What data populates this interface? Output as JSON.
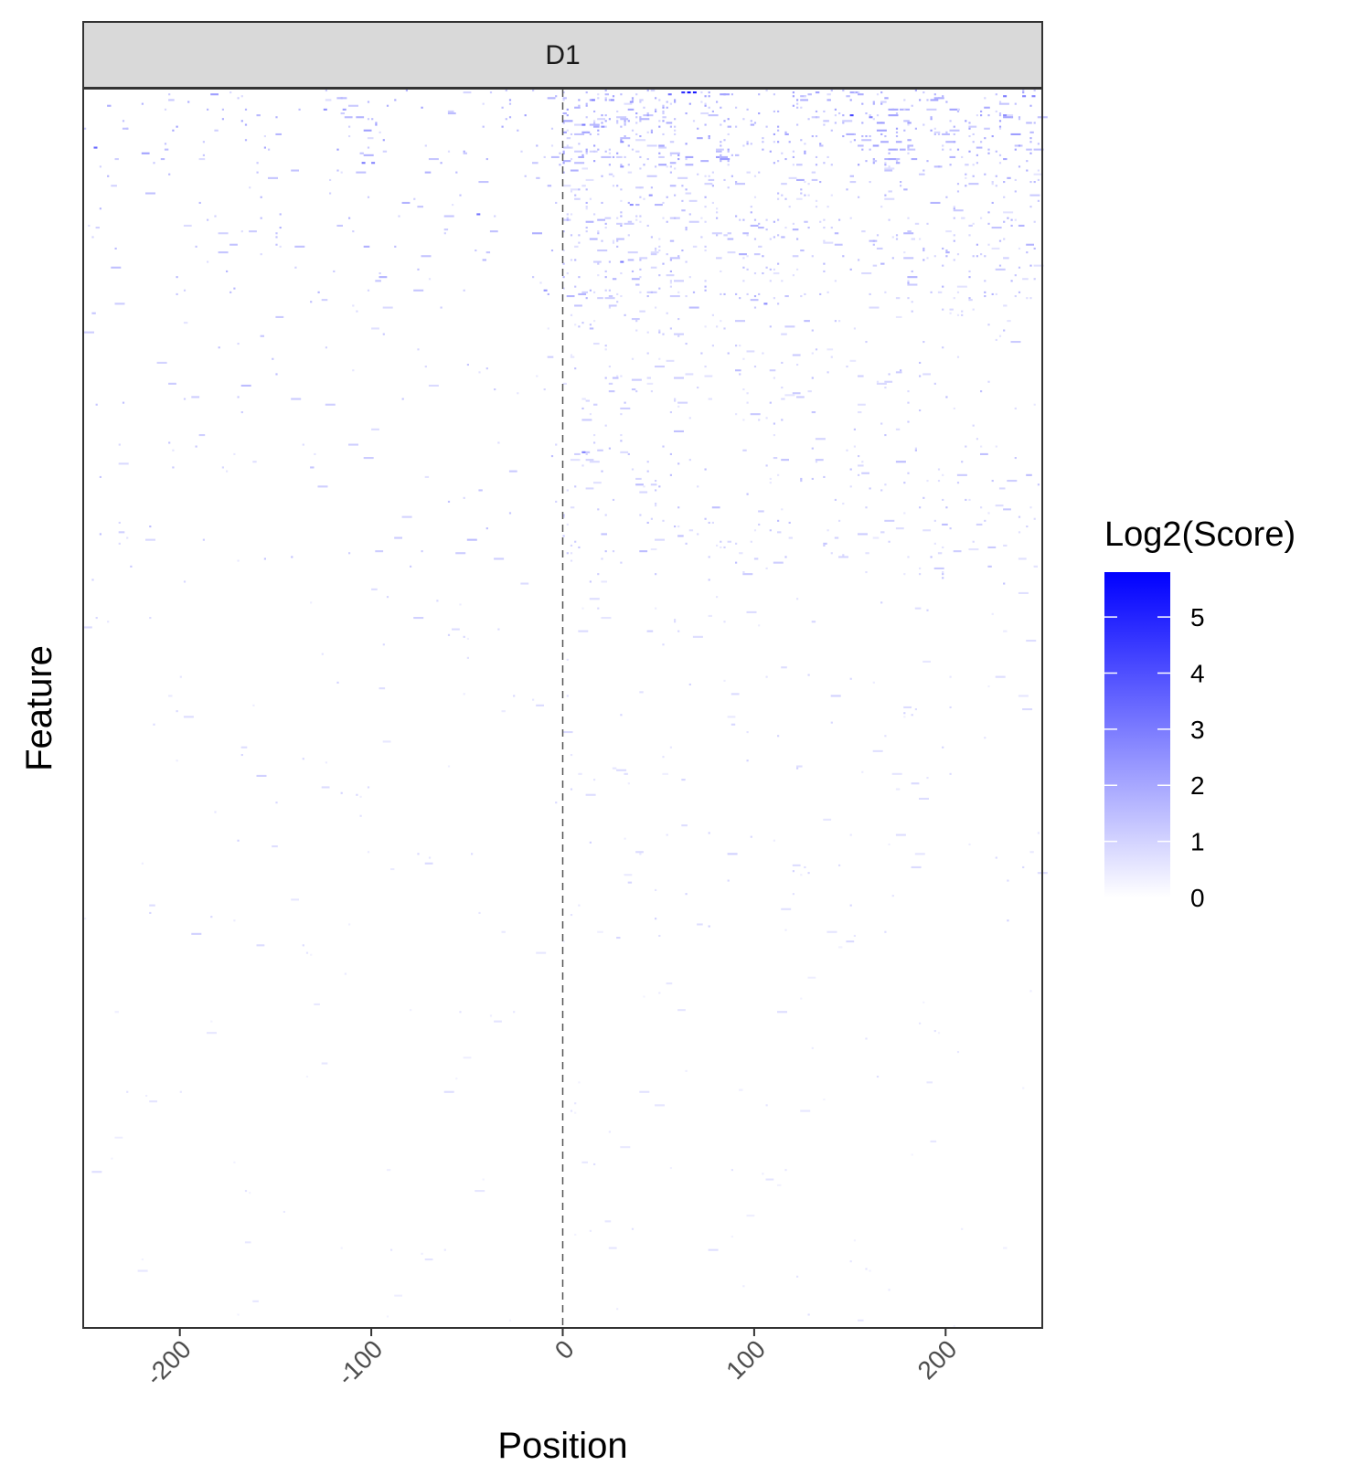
{
  "chart_data": {
    "type": "heatmap",
    "title": "",
    "facet": "D1",
    "xlabel": "Position",
    "ylabel": "Feature",
    "xlim": [
      -250,
      250
    ],
    "x_ticks": [
      -200,
      -100,
      0,
      100,
      200
    ],
    "x_tick_labels": [
      "-200",
      "-100",
      "0",
      "100",
      "200"
    ],
    "reference_line": {
      "x": 0,
      "style": "dashed"
    },
    "y_tick_labels": [],
    "row_count": 650,
    "legend": {
      "title": "Log2(Score)",
      "position": "right",
      "min": 0,
      "max": 5.8,
      "ticks": [
        0,
        1,
        2,
        3,
        4,
        5
      ],
      "tick_labels": [
        "0",
        "1",
        "2",
        "3",
        "4",
        "5"
      ],
      "low_color": "#ffffff",
      "high_color": "#0000ff"
    },
    "strong_cells": [
      {
        "x": 65,
        "row": 1,
        "value": 5.5
      },
      {
        "x": 68,
        "row": 1,
        "value": 5.3
      },
      {
        "x": 62,
        "row": 1,
        "value": 4.8
      },
      {
        "x": 55,
        "row": 2,
        "value": 3.2
      },
      {
        "x": 230,
        "row": 3,
        "value": 3.0
      },
      {
        "x": 240,
        "row": 3,
        "value": 2.8
      },
      {
        "x": 245,
        "row": 3,
        "value": 2.8
      },
      {
        "x": 15,
        "row": 5,
        "value": 3.0
      },
      {
        "x": 25,
        "row": 5,
        "value": 2.6
      },
      {
        "x": 35,
        "row": 6,
        "value": 2.4
      },
      {
        "x": -125,
        "row": 10,
        "value": 2.5
      },
      {
        "x": -115,
        "row": 10,
        "value": 2.2
      },
      {
        "x": 150,
        "row": 13,
        "value": 4.2
      },
      {
        "x": 160,
        "row": 14,
        "value": 2.8
      },
      {
        "x": 230,
        "row": 13,
        "value": 2.6
      },
      {
        "x": 10,
        "row": 18,
        "value": 3.0
      },
      {
        "x": 20,
        "row": 19,
        "value": 2.4
      },
      {
        "x": -245,
        "row": 30,
        "value": 3.5
      },
      {
        "x": 30,
        "row": 27,
        "value": 2.6
      },
      {
        "x": -105,
        "row": 38,
        "value": 3.0
      },
      {
        "x": -100,
        "row": 38,
        "value": 2.8
      },
      {
        "x": 30,
        "row": 40,
        "value": 2.4
      },
      {
        "x": -45,
        "row": 65,
        "value": 3.2
      },
      {
        "x": 35,
        "row": 60,
        "value": 2.6
      },
      {
        "x": 45,
        "row": 55,
        "value": 2.4
      },
      {
        "x": 80,
        "row": 35,
        "value": 2.2
      },
      {
        "x": 30,
        "row": 90,
        "value": 3.0
      },
      {
        "x": -10,
        "row": 105,
        "value": 2.4
      },
      {
        "x": 10,
        "row": 190,
        "value": 2.8
      },
      {
        "x": 105,
        "row": 112,
        "value": 2.6
      }
    ],
    "density_profile": [
      {
        "row_from": 0,
        "row_to": 40,
        "left_density": 0.05,
        "right_density": 0.22,
        "mean_value": 1.5
      },
      {
        "row_from": 40,
        "row_to": 110,
        "left_density": 0.03,
        "right_density": 0.12,
        "mean_value": 1.2
      },
      {
        "row_from": 110,
        "row_to": 260,
        "left_density": 0.015,
        "right_density": 0.05,
        "mean_value": 1.0
      },
      {
        "row_from": 260,
        "row_to": 450,
        "left_density": 0.008,
        "right_density": 0.015,
        "mean_value": 0.7
      },
      {
        "row_from": 450,
        "row_to": 650,
        "left_density": 0.004,
        "right_density": 0.006,
        "mean_value": 0.5
      }
    ]
  }
}
